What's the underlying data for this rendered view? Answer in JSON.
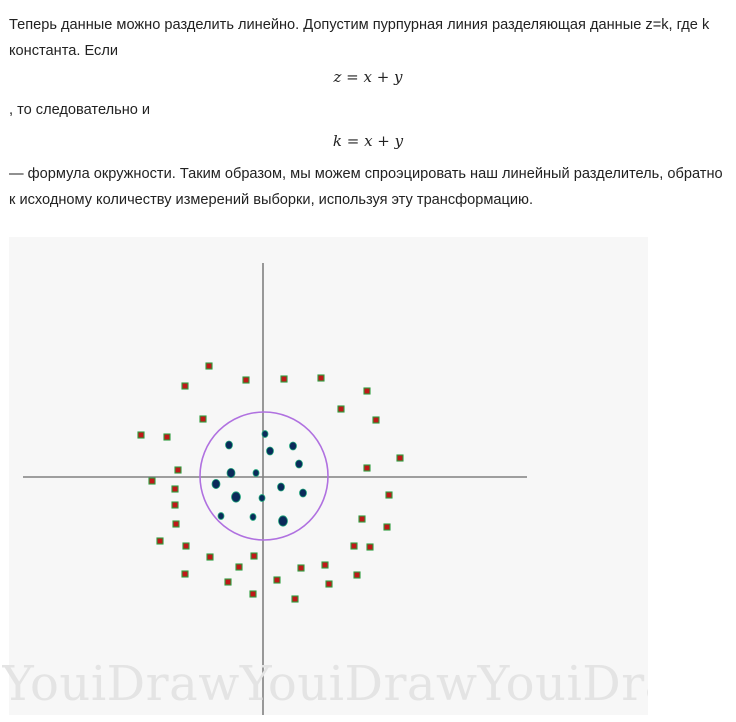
{
  "article": {
    "para1": "Теперь данные можно разделить линейно. Допустим пурпурная линия разделяющая данные z=k, где k константа. Если",
    "formula1": "z = x + y",
    "para2": ", то следовательно и",
    "formula2": "k = x + y",
    "para3": "— формула окружности. Таким образом, мы можем спроэцировать наш линейный разделитель, обратно к исходному количеству измерений выборки, используя эту трансформацию."
  },
  "figure": {
    "watermark": "YouiDrawYouiDrawYouiDra",
    "colors": {
      "background": "#f7f7f7",
      "axes": "#808080",
      "circle": "#b071e0",
      "inner_points": "#0a2a5a",
      "inner_points_edge": "#1fa37a",
      "outer_points": "#c01818",
      "outer_points_edge": "#2e9d3e"
    }
  }
}
